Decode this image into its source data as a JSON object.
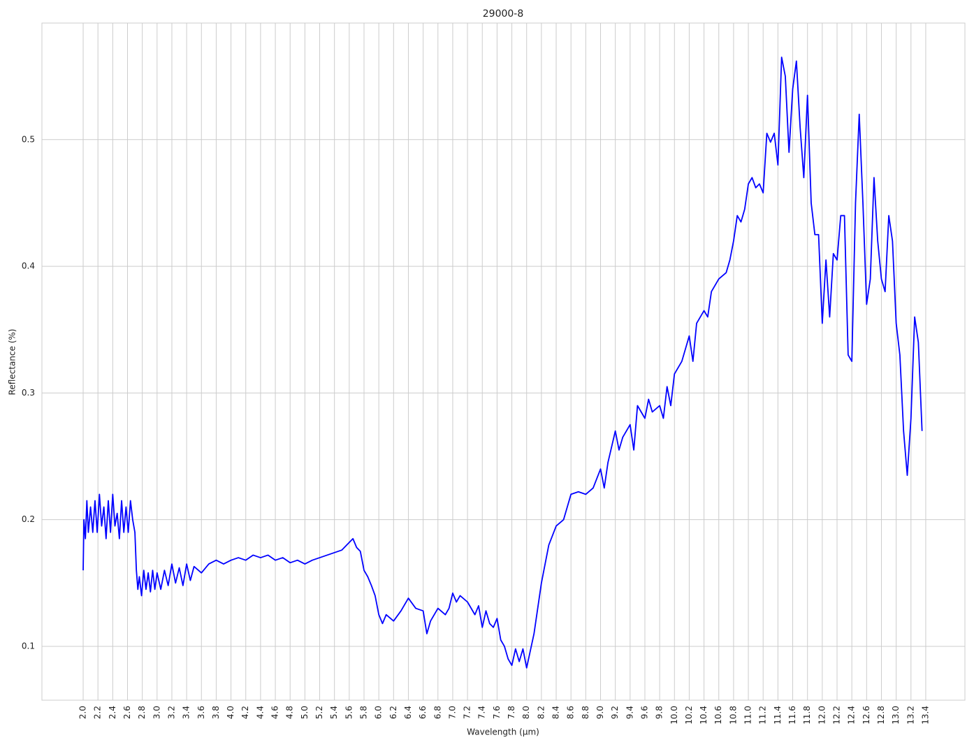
{
  "chart_data": {
    "type": "line",
    "title": "29000-8",
    "x_label": "Wavelength (μm)",
    "y_label": "Reflectance (%)",
    "color": "#0000ff",
    "grid": true,
    "xlim": [
      1.442,
      13.93
    ],
    "ylim": [
      0.0575,
      0.592
    ],
    "xticks": [
      {
        "value": 2,
        "label": "2.0"
      },
      2.2,
      2.4,
      2.6,
      2.8,
      {
        "value": 3,
        "label": "3.0"
      },
      3.2,
      3.4,
      3.6,
      3.8,
      {
        "value": 4,
        "label": "4.0"
      },
      4.2,
      4.4,
      4.6,
      4.8,
      {
        "value": 5,
        "label": "5.0"
      },
      5.2,
      5.4,
      5.6,
      5.8,
      {
        "value": 6,
        "label": "6.0"
      },
      6.2,
      6.4,
      6.6,
      6.8,
      {
        "value": 7,
        "label": "7.0"
      },
      7.2,
      7.4,
      7.6,
      7.8,
      {
        "value": 8,
        "label": "8.0"
      },
      8.2,
      8.4,
      8.6,
      8.8,
      {
        "value": 9,
        "label": "9.0"
      },
      9.2,
      9.4,
      9.6,
      9.8,
      {
        "value": 10,
        "label": "10.0"
      },
      10.2,
      10.4,
      10.6,
      10.8,
      {
        "value": 11,
        "label": "11.0"
      },
      11.2,
      11.4,
      11.6,
      11.8,
      {
        "value": 12,
        "label": "12.0"
      },
      12.2,
      12.4,
      12.6,
      12.8,
      {
        "value": 13,
        "label": "13.0"
      },
      13.2,
      13.4
    ],
    "yticks": [
      0.1,
      0.2,
      0.3,
      0.4,
      0.5
    ],
    "x": [
      2.0,
      2.01,
      2.03,
      2.05,
      2.07,
      2.1,
      2.13,
      2.16,
      2.19,
      2.22,
      2.25,
      2.28,
      2.31,
      2.34,
      2.37,
      2.4,
      2.43,
      2.46,
      2.49,
      2.52,
      2.55,
      2.58,
      2.61,
      2.64,
      2.67,
      2.7,
      2.72,
      2.74,
      2.76,
      2.79,
      2.82,
      2.85,
      2.88,
      2.91,
      2.94,
      2.97,
      3.0,
      3.05,
      3.1,
      3.15,
      3.2,
      3.25,
      3.3,
      3.35,
      3.4,
      3.45,
      3.5,
      3.6,
      3.7,
      3.8,
      3.9,
      4.0,
      4.1,
      4.2,
      4.3,
      4.4,
      4.5,
      4.6,
      4.7,
      4.8,
      4.9,
      5.0,
      5.1,
      5.2,
      5.3,
      5.4,
      5.5,
      5.6,
      5.65,
      5.7,
      5.75,
      5.8,
      5.85,
      5.9,
      5.95,
      6.0,
      6.05,
      6.1,
      6.2,
      6.3,
      6.4,
      6.5,
      6.6,
      6.65,
      6.7,
      6.8,
      6.9,
      6.95,
      7.0,
      7.05,
      7.1,
      7.2,
      7.3,
      7.35,
      7.4,
      7.45,
      7.5,
      7.55,
      7.6,
      7.65,
      7.7,
      7.75,
      7.8,
      7.85,
      7.9,
      7.95,
      8.0,
      8.1,
      8.2,
      8.3,
      8.4,
      8.5,
      8.6,
      8.7,
      8.8,
      8.9,
      9.0,
      9.05,
      9.1,
      9.2,
      9.25,
      9.3,
      9.4,
      9.45,
      9.5,
      9.6,
      9.65,
      9.7,
      9.8,
      9.85,
      9.9,
      9.95,
      10.0,
      10.1,
      10.2,
      10.25,
      10.3,
      10.4,
      10.45,
      10.5,
      10.6,
      10.7,
      10.75,
      10.8,
      10.85,
      10.9,
      10.95,
      11.0,
      11.05,
      11.1,
      11.15,
      11.2,
      11.25,
      11.3,
      11.35,
      11.4,
      11.45,
      11.5,
      11.55,
      11.6,
      11.65,
      11.7,
      11.75,
      11.8,
      11.85,
      11.9,
      11.95,
      12.0,
      12.05,
      12.1,
      12.15,
      12.2,
      12.25,
      12.3,
      12.35,
      12.4,
      12.45,
      12.5,
      12.55,
      12.6,
      12.65,
      12.7,
      12.75,
      12.8,
      12.85,
      12.9,
      12.95,
      13.0,
      13.05,
      13.1,
      13.15,
      13.2,
      13.25,
      13.3,
      13.35
    ],
    "values": [
      0.16,
      0.2,
      0.185,
      0.215,
      0.19,
      0.21,
      0.19,
      0.215,
      0.19,
      0.22,
      0.195,
      0.21,
      0.185,
      0.215,
      0.19,
      0.22,
      0.195,
      0.205,
      0.185,
      0.215,
      0.19,
      0.21,
      0.19,
      0.215,
      0.2,
      0.19,
      0.16,
      0.145,
      0.155,
      0.14,
      0.16,
      0.145,
      0.158,
      0.143,
      0.16,
      0.145,
      0.158,
      0.145,
      0.16,
      0.148,
      0.165,
      0.15,
      0.162,
      0.148,
      0.165,
      0.152,
      0.163,
      0.158,
      0.165,
      0.168,
      0.165,
      0.168,
      0.17,
      0.168,
      0.172,
      0.17,
      0.172,
      0.168,
      0.17,
      0.166,
      0.168,
      0.165,
      0.168,
      0.17,
      0.172,
      0.174,
      0.176,
      0.182,
      0.185,
      0.178,
      0.175,
      0.16,
      0.155,
      0.148,
      0.14,
      0.125,
      0.118,
      0.125,
      0.12,
      0.128,
      0.138,
      0.13,
      0.128,
      0.11,
      0.12,
      0.13,
      0.125,
      0.13,
      0.142,
      0.135,
      0.14,
      0.135,
      0.125,
      0.132,
      0.115,
      0.128,
      0.118,
      0.115,
      0.122,
      0.105,
      0.1,
      0.09,
      0.085,
      0.098,
      0.088,
      0.098,
      0.083,
      0.11,
      0.15,
      0.18,
      0.195,
      0.2,
      0.22,
      0.222,
      0.22,
      0.225,
      0.24,
      0.225,
      0.245,
      0.27,
      0.255,
      0.265,
      0.275,
      0.255,
      0.29,
      0.28,
      0.295,
      0.285,
      0.29,
      0.28,
      0.305,
      0.29,
      0.315,
      0.325,
      0.345,
      0.325,
      0.355,
      0.365,
      0.36,
      0.38,
      0.39,
      0.395,
      0.405,
      0.42,
      0.44,
      0.435,
      0.445,
      0.465,
      0.47,
      0.462,
      0.465,
      0.458,
      0.505,
      0.498,
      0.505,
      0.48,
      0.565,
      0.55,
      0.49,
      0.54,
      0.562,
      0.51,
      0.47,
      0.535,
      0.45,
      0.425,
      0.425,
      0.355,
      0.405,
      0.36,
      0.41,
      0.405,
      0.44,
      0.44,
      0.33,
      0.325,
      0.45,
      0.52,
      0.45,
      0.37,
      0.39,
      0.47,
      0.42,
      0.39,
      0.38,
      0.44,
      0.42,
      0.355,
      0.33,
      0.27,
      0.235,
      0.28,
      0.36,
      0.34,
      0.27
    ]
  }
}
